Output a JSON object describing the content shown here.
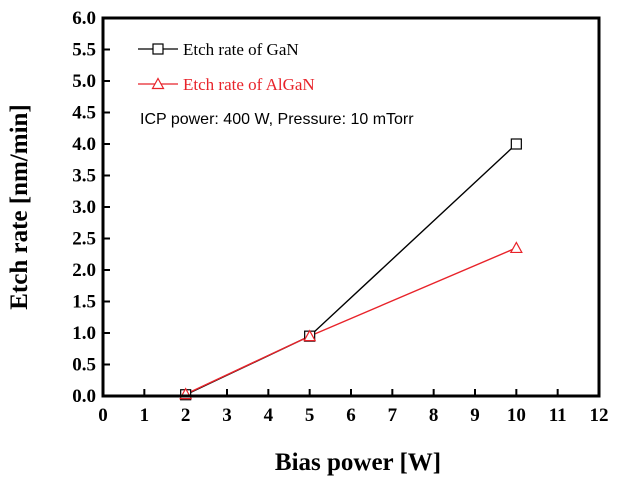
{
  "chart_data": {
    "type": "line",
    "xlabel": "Bias power [W]",
    "ylabel": "Etch rate [nm/min]",
    "xlim": [
      0,
      12
    ],
    "ylim": [
      0,
      6
    ],
    "xticks": [
      "0",
      "1",
      "2",
      "3",
      "4",
      "5",
      "6",
      "7",
      "8",
      "9",
      "10",
      "11",
      "12"
    ],
    "yticks": [
      "0.0",
      "0.5",
      "1.0",
      "1.5",
      "2.0",
      "2.5",
      "3.0",
      "3.5",
      "4.0",
      "4.5",
      "5.0",
      "5.5",
      "6.0"
    ],
    "grid": false,
    "legend_position": "top-left",
    "series": [
      {
        "name": "Etch rate of GaN",
        "marker": "square",
        "color": "#000000",
        "x": [
          2,
          5,
          10
        ],
        "y": [
          0.02,
          0.95,
          4.0
        ]
      },
      {
        "name": "Etch rate of AlGaN",
        "marker": "triangle",
        "color": "#e8232a",
        "x": [
          2,
          5,
          10
        ],
        "y": [
          0.03,
          0.95,
          2.35
        ]
      }
    ],
    "annotation": "ICP power: 400 W, Pressure: 10 mTorr"
  }
}
